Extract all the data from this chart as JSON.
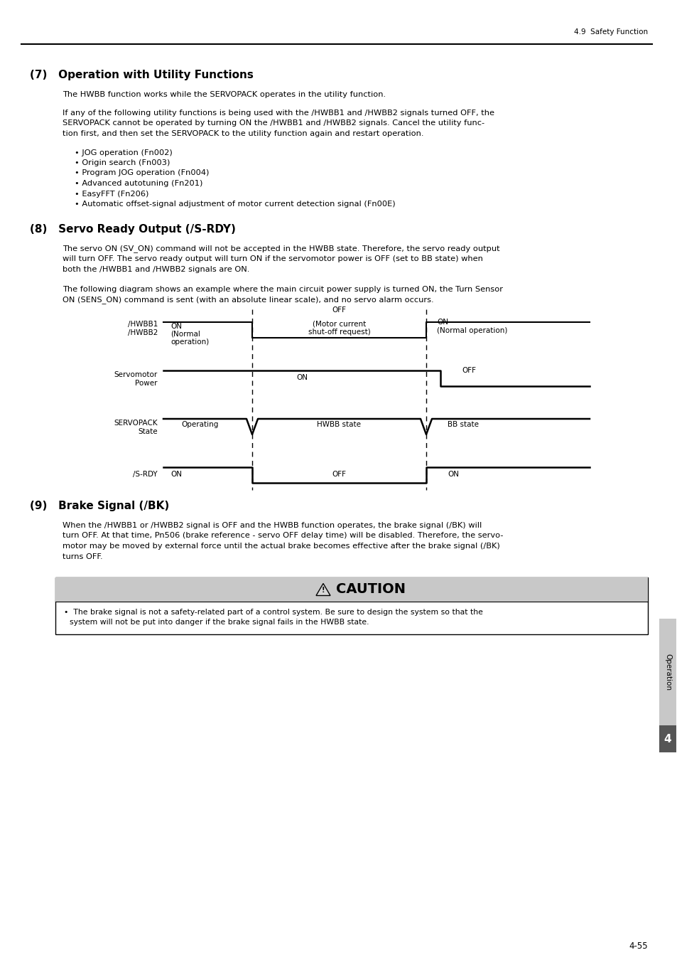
{
  "page_bg": "#ffffff",
  "header_text": "4.9  Safety Function",
  "footer_text": "4-55",
  "section7_title": "(7)   Operation with Utility Functions",
  "section7_para1": "The HWBB function works while the SERVOPACK operates in the utility function.",
  "section7_para2a": "If any of the following utility functions is being used with the /HWBB1 and /HWBB2 signals turned OFF, the",
  "section7_para2b": "SERVOPACK cannot be operated by turning ON the /HWBB1 and /HWBB2 signals. Cancel the utility func-",
  "section7_para2c": "tion first, and then set the SERVOPACK to the utility function again and restart operation.",
  "section7_bullets": [
    "JOG operation (Fn002)",
    "Origin search (Fn003)",
    "Program JOG operation (Fn004)",
    "Advanced autotuning (Fn201)",
    "EasyFFT (Fn206)",
    "Automatic offset-signal adjustment of motor current detection signal (Fn00E)"
  ],
  "section8_title": "(8)   Servo Ready Output (/S-RDY)",
  "section8_para1a": "The servo ON (SV_ON) command will not be accepted in the HWBB state. Therefore, the servo ready output",
  "section8_para1b": "will turn OFF. The servo ready output will turn ON if the servomotor power is OFF (set to BB state) when",
  "section8_para1c": "both the /HWBB1 and /HWBB2 signals are ON.",
  "section8_para2a": "The following diagram shows an example where the main circuit power supply is turned ON, the Turn Sensor",
  "section8_para2b": "ON (SENS_ON) command is sent (with an absolute linear scale), and no servo alarm occurs.",
  "section9_title": "(9)   Brake Signal (/BK)",
  "section9_para1a": "When the /HWBB1 or /HWBB2 signal is OFF and the HWBB function operates, the brake signal (/BK) will",
  "section9_para1b": "turn OFF. At that time, Pn506 (brake reference - servo OFF delay time) will be disabled. Therefore, the servo-",
  "section9_para1c": "motor may be moved by external force until the actual brake becomes effective after the brake signal (/BK)",
  "section9_para1d": "turns OFF.",
  "caution_title": "CAUTION",
  "caution_text1": "The brake signal is not a safety-related part of a control system. Be sure to design the system so that the",
  "caution_text2": "system will not be put into danger if the brake signal fails in the HWBB state.",
  "sidebar_text": "Operation",
  "sidebar_number": "4"
}
